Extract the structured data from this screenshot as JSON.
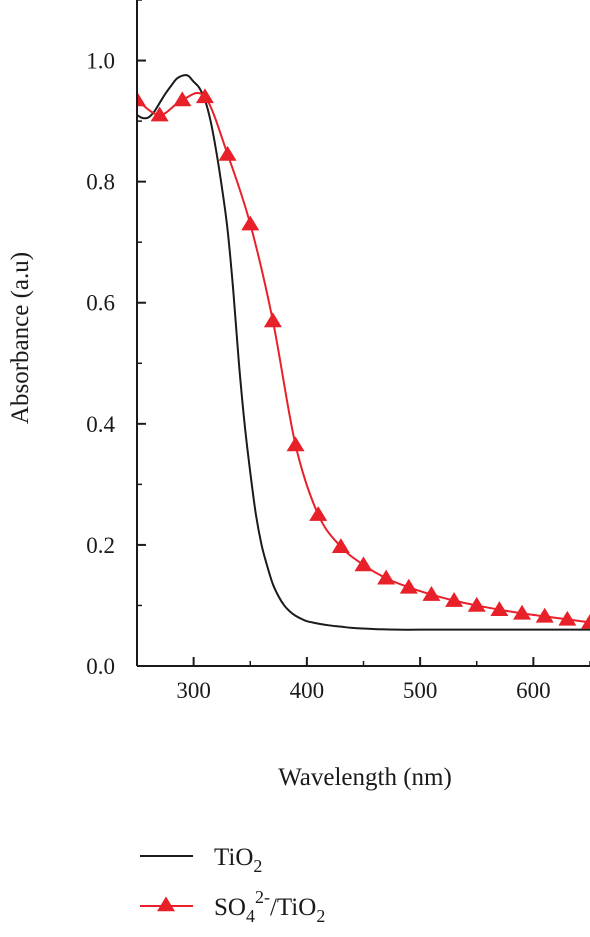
{
  "chart_data": {
    "type": "line",
    "title": "",
    "xlabel": "Wavelength (nm)",
    "ylabel": "Absorbance (a.u)",
    "xlim": [
      250,
      650
    ],
    "ylim": [
      0.0,
      1.1
    ],
    "x_ticks": [
      300,
      400,
      500,
      600
    ],
    "x_tick_labels": [
      "300",
      "400",
      "500",
      "600"
    ],
    "y_ticks": [
      0.0,
      0.2,
      0.4,
      0.6,
      0.8,
      1.0
    ],
    "y_tick_labels": [
      "0.0",
      "0.2",
      "0.4",
      "0.6",
      "0.8",
      "1.0"
    ],
    "grid": false,
    "legend_position": "bottom",
    "series": [
      {
        "name": "TiO2",
        "name_parts": {
          "base": "TiO",
          "sub": "2"
        },
        "color": "#1a1a1a",
        "marker": "none",
        "x": [
          250,
          255,
          260,
          265,
          270,
          275,
          280,
          285,
          290,
          295,
          300,
          305,
          310,
          315,
          320,
          325,
          330,
          335,
          340,
          345,
          350,
          355,
          360,
          365,
          370,
          375,
          380,
          385,
          390,
          395,
          400,
          410,
          420,
          430,
          440,
          460,
          480,
          500,
          550,
          600,
          650
        ],
        "y": [
          0.91,
          0.905,
          0.906,
          0.915,
          0.93,
          0.945,
          0.958,
          0.97,
          0.975,
          0.975,
          0.965,
          0.955,
          0.935,
          0.9,
          0.85,
          0.79,
          0.72,
          0.62,
          0.5,
          0.4,
          0.32,
          0.25,
          0.2,
          0.165,
          0.135,
          0.115,
          0.1,
          0.09,
          0.083,
          0.078,
          0.074,
          0.07,
          0.067,
          0.065,
          0.063,
          0.061,
          0.06,
          0.06,
          0.06,
          0.06,
          0.06
        ]
      },
      {
        "name": "SO42-/TiO2",
        "name_parts": {
          "a": "SO",
          "a_sub": "4",
          "a_sup": "2-",
          "b": "/TiO",
          "b_sub": "2"
        },
        "color": "#e8202a",
        "marker": "triangle",
        "x": [
          250,
          270,
          290,
          310,
          330,
          350,
          370,
          390,
          410,
          430,
          450,
          470,
          490,
          510,
          530,
          550,
          570,
          590,
          610,
          630,
          650
        ],
        "y": [
          0.935,
          0.91,
          0.935,
          0.94,
          0.845,
          0.73,
          0.57,
          0.365,
          0.25,
          0.197,
          0.167,
          0.145,
          0.13,
          0.118,
          0.108,
          0.1,
          0.093,
          0.087,
          0.082,
          0.077,
          0.072
        ]
      }
    ]
  }
}
